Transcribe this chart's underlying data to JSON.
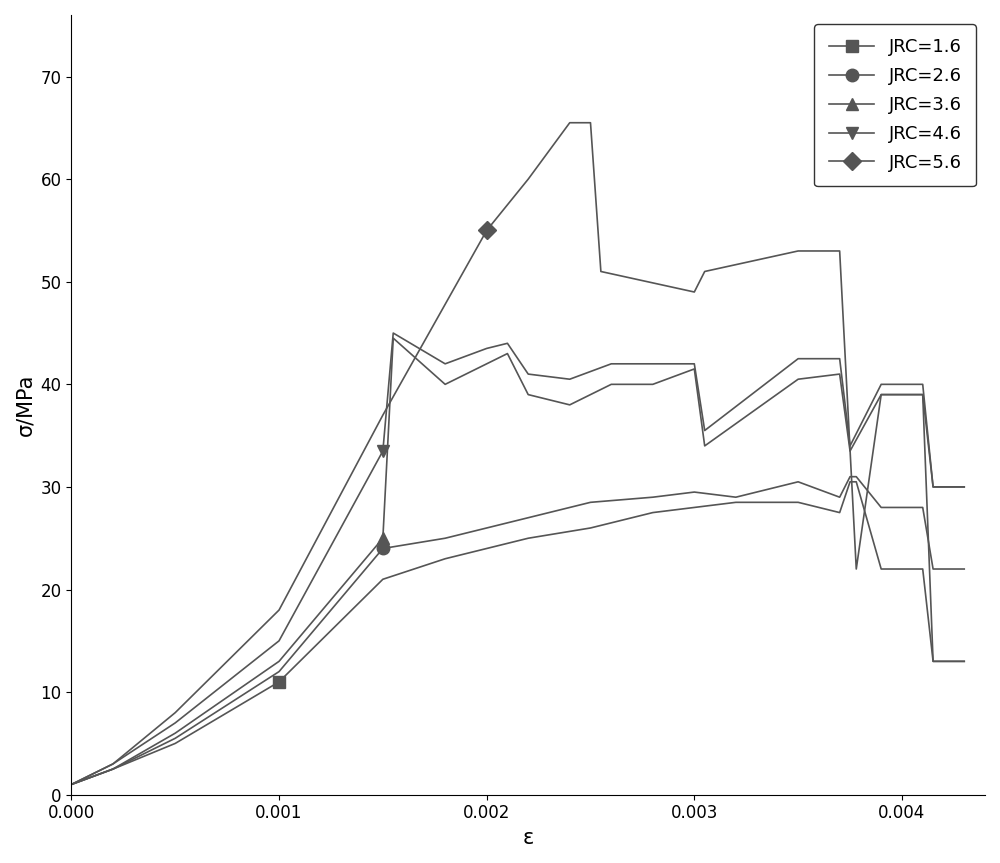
{
  "series": [
    {
      "label": "JRC=1.6",
      "marker": "s",
      "color": "#555555",
      "marker_idx": 3,
      "x": [
        0.0,
        0.0002,
        0.0005,
        0.001,
        0.0015,
        0.0018,
        0.002,
        0.0022,
        0.0025,
        0.0028,
        0.003,
        0.0032,
        0.0035,
        0.0037,
        0.00375,
        0.00378,
        0.0039,
        0.0041,
        0.00415,
        0.0043
      ],
      "y": [
        1,
        2.5,
        5,
        11,
        21,
        23,
        24,
        25,
        26,
        27.5,
        28,
        28.5,
        28.5,
        27.5,
        30.5,
        30.5,
        22,
        22,
        13,
        13
      ]
    },
    {
      "label": "JRC=2.6",
      "marker": "o",
      "color": "#555555",
      "marker_idx": 4,
      "x": [
        0.0,
        0.0002,
        0.0005,
        0.001,
        0.0015,
        0.0018,
        0.002,
        0.0022,
        0.0025,
        0.0028,
        0.003,
        0.0032,
        0.0035,
        0.0037,
        0.00375,
        0.00378,
        0.0039,
        0.0041,
        0.00415,
        0.0043
      ],
      "y": [
        1,
        2.5,
        5.5,
        12,
        24,
        25,
        26,
        27,
        28.5,
        29,
        29.5,
        29,
        30.5,
        29,
        31,
        31,
        28,
        28,
        22,
        22
      ]
    },
    {
      "label": "JRC=3.6",
      "marker": "^",
      "color": "#555555",
      "marker_idx": 4,
      "x": [
        0.0,
        0.0002,
        0.0005,
        0.001,
        0.0015,
        0.00155,
        0.0018,
        0.002,
        0.0021,
        0.0022,
        0.0024,
        0.0026,
        0.0028,
        0.003,
        0.00305,
        0.0035,
        0.0037,
        0.00375,
        0.0039,
        0.0041,
        0.00415,
        0.0043
      ],
      "y": [
        1,
        2.5,
        6,
        13,
        25,
        44.5,
        40,
        42,
        43,
        39,
        38,
        40,
        40,
        41.5,
        34,
        40.5,
        41,
        33.5,
        39,
        39,
        30,
        30
      ]
    },
    {
      "label": "JRC=4.6",
      "marker": "v",
      "color": "#555555",
      "marker_idx": 4,
      "x": [
        0.0,
        0.0002,
        0.0005,
        0.001,
        0.0015,
        0.00155,
        0.0018,
        0.002,
        0.0021,
        0.0022,
        0.0024,
        0.0026,
        0.0028,
        0.003,
        0.00305,
        0.0035,
        0.0037,
        0.00375,
        0.0039,
        0.0041,
        0.00415,
        0.0043
      ],
      "y": [
        1,
        3,
        7,
        15,
        33.5,
        45,
        42,
        43.5,
        44,
        41,
        40.5,
        42,
        42,
        42,
        35.5,
        42.5,
        42.5,
        34,
        40,
        40,
        30,
        30
      ]
    },
    {
      "label": "JRC=5.6",
      "marker": "D",
      "color": "#555555",
      "marker_idx": 5,
      "x": [
        0.0,
        0.0002,
        0.0005,
        0.001,
        0.0015,
        0.002,
        0.0022,
        0.0024,
        0.0025,
        0.00255,
        0.003,
        0.00305,
        0.0035,
        0.0037,
        0.00378,
        0.0039,
        0.0041,
        0.00415,
        0.0043
      ],
      "y": [
        1,
        3,
        8,
        18,
        37,
        55,
        60,
        65.5,
        65.5,
        51,
        49,
        51,
        53,
        53,
        22,
        39,
        39,
        13,
        13
      ]
    }
  ],
  "xlabel": "ε",
  "ylabel": "σ/MPa",
  "xlim": [
    0.0,
    0.0044
  ],
  "ylim": [
    0,
    76
  ],
  "xticks": [
    0.0,
    0.001,
    0.002,
    0.003,
    0.004
  ],
  "yticks": [
    0,
    10,
    20,
    30,
    40,
    50,
    60,
    70
  ],
  "figsize": [
    10.0,
    8.63
  ],
  "dpi": 100,
  "line_color": "#555555",
  "line_width": 1.2,
  "marker_size": 9,
  "background_color": "#ffffff",
  "legend_loc": "upper right",
  "legend_fontsize": 13,
  "tick_fontsize": 12,
  "label_fontsize": 15
}
